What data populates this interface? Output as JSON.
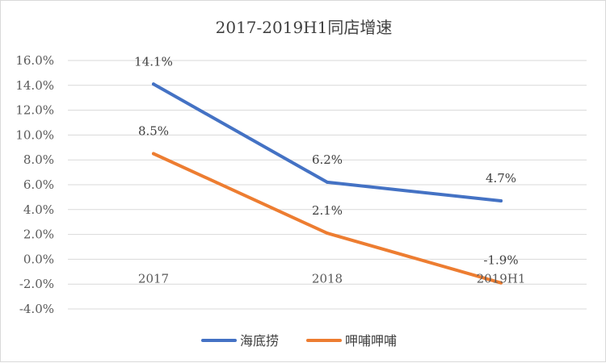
{
  "chart_data": {
    "type": "line",
    "title": "2017-2019H1同店增速",
    "categories": [
      "2017",
      "2018",
      "2019H1"
    ],
    "y_ticks": [
      "16.0%",
      "14.0%",
      "12.0%",
      "10.0%",
      "8.0%",
      "6.0%",
      "4.0%",
      "2.0%",
      "0.0%",
      "-2.0%",
      "-4.0%"
    ],
    "ylim": [
      -4,
      16
    ],
    "ystep": 2,
    "grid": true,
    "legend_position": "bottom",
    "series": [
      {
        "name": "海底捞",
        "color": "#4472c4",
        "values": [
          14.1,
          6.2,
          4.7
        ],
        "labels": [
          "14.1%",
          "6.2%",
          "4.7%"
        ]
      },
      {
        "name": "呷哺呷哺",
        "color": "#ed7d31",
        "values": [
          8.5,
          2.1,
          -1.9
        ],
        "labels": [
          "8.5%",
          "2.1%",
          "-1.9%"
        ]
      }
    ]
  }
}
